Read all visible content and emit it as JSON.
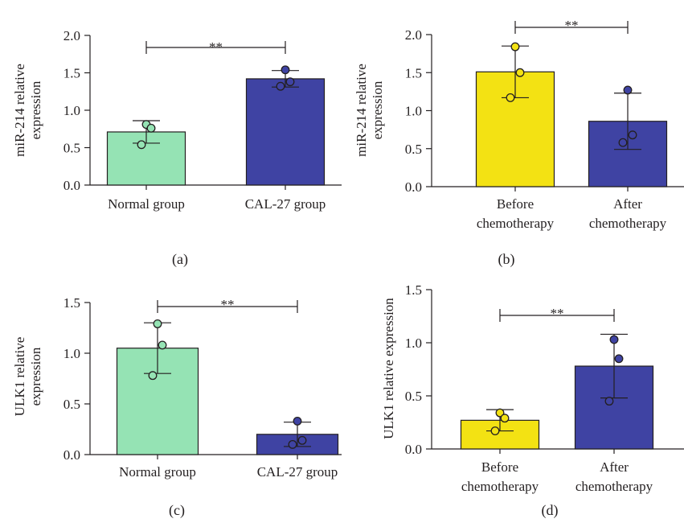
{
  "colors": {
    "normal": "#95e3b4",
    "cal27": "#3f43a3",
    "before": "#f3e213",
    "after": "#3f43a3",
    "axis": "#231f20"
  },
  "chart_data": [
    {
      "id": "a",
      "type": "bar",
      "panel_label": "(a)",
      "ylabel": [
        "miR-214 relative",
        "expression"
      ],
      "ylim": [
        0,
        2.0
      ],
      "yticks": [
        "0.0",
        "0.5",
        "1.0",
        "1.5",
        "2.0"
      ],
      "categories": [
        [
          "Normal group"
        ],
        [
          "CAL-27 group"
        ]
      ],
      "values": [
        0.71,
        1.42
      ],
      "sd": [
        0.15,
        0.11
      ],
      "points": [
        [
          0.81,
          0.76,
          0.54
        ],
        [
          1.54,
          1.38,
          1.32
        ]
      ],
      "colors": [
        "#95e3b4",
        "#3f43a3"
      ],
      "significance": "**",
      "grid": false
    },
    {
      "id": "b",
      "type": "bar",
      "panel_label": "(b)",
      "ylabel": [
        "miR-214 relative",
        "expression"
      ],
      "ylim": [
        0,
        2.0
      ],
      "yticks": [
        "0.0",
        "0.5",
        "1.0",
        "1.5",
        "2.0"
      ],
      "categories": [
        [
          "Before",
          "chemotherapy"
        ],
        [
          "After",
          "chemotherapy"
        ]
      ],
      "values": [
        1.51,
        0.86
      ],
      "sd": [
        0.34,
        0.37
      ],
      "points": [
        [
          1.84,
          1.5,
          1.17
        ],
        [
          1.27,
          0.68,
          0.58
        ]
      ],
      "colors": [
        "#f3e213",
        "#3f43a3"
      ],
      "significance": "**",
      "grid": false
    },
    {
      "id": "c",
      "type": "bar",
      "panel_label": "(c)",
      "ylabel": [
        "ULK1 relative",
        "expression"
      ],
      "ylim": [
        0,
        1.5
      ],
      "yticks": [
        "0.0",
        "0.5",
        "1.0",
        "1.5"
      ],
      "categories": [
        [
          "Normal group"
        ],
        [
          "CAL-27 group"
        ]
      ],
      "values": [
        1.05,
        0.2
      ],
      "sd": [
        0.25,
        0.12
      ],
      "points": [
        [
          1.29,
          1.08,
          0.78
        ],
        [
          0.33,
          0.14,
          0.1
        ]
      ],
      "colors": [
        "#95e3b4",
        "#3f43a3"
      ],
      "significance": "**",
      "grid": false
    },
    {
      "id": "d",
      "type": "bar",
      "panel_label": "(d)",
      "ylabel": [
        "ULK1 relative expression"
      ],
      "ylim": [
        0,
        1.5
      ],
      "yticks": [
        "0.0",
        "0.5",
        "1.0",
        "1.5"
      ],
      "categories": [
        [
          "Before",
          "chemotherapy"
        ],
        [
          "After",
          "chemotherapy"
        ]
      ],
      "values": [
        0.27,
        0.78
      ],
      "sd": [
        0.1,
        0.3
      ],
      "points": [
        [
          0.34,
          0.29,
          0.17
        ],
        [
          1.03,
          0.85,
          0.45
        ]
      ],
      "colors": [
        "#f3e213",
        "#3f43a3"
      ],
      "significance": "**",
      "grid": false
    }
  ]
}
